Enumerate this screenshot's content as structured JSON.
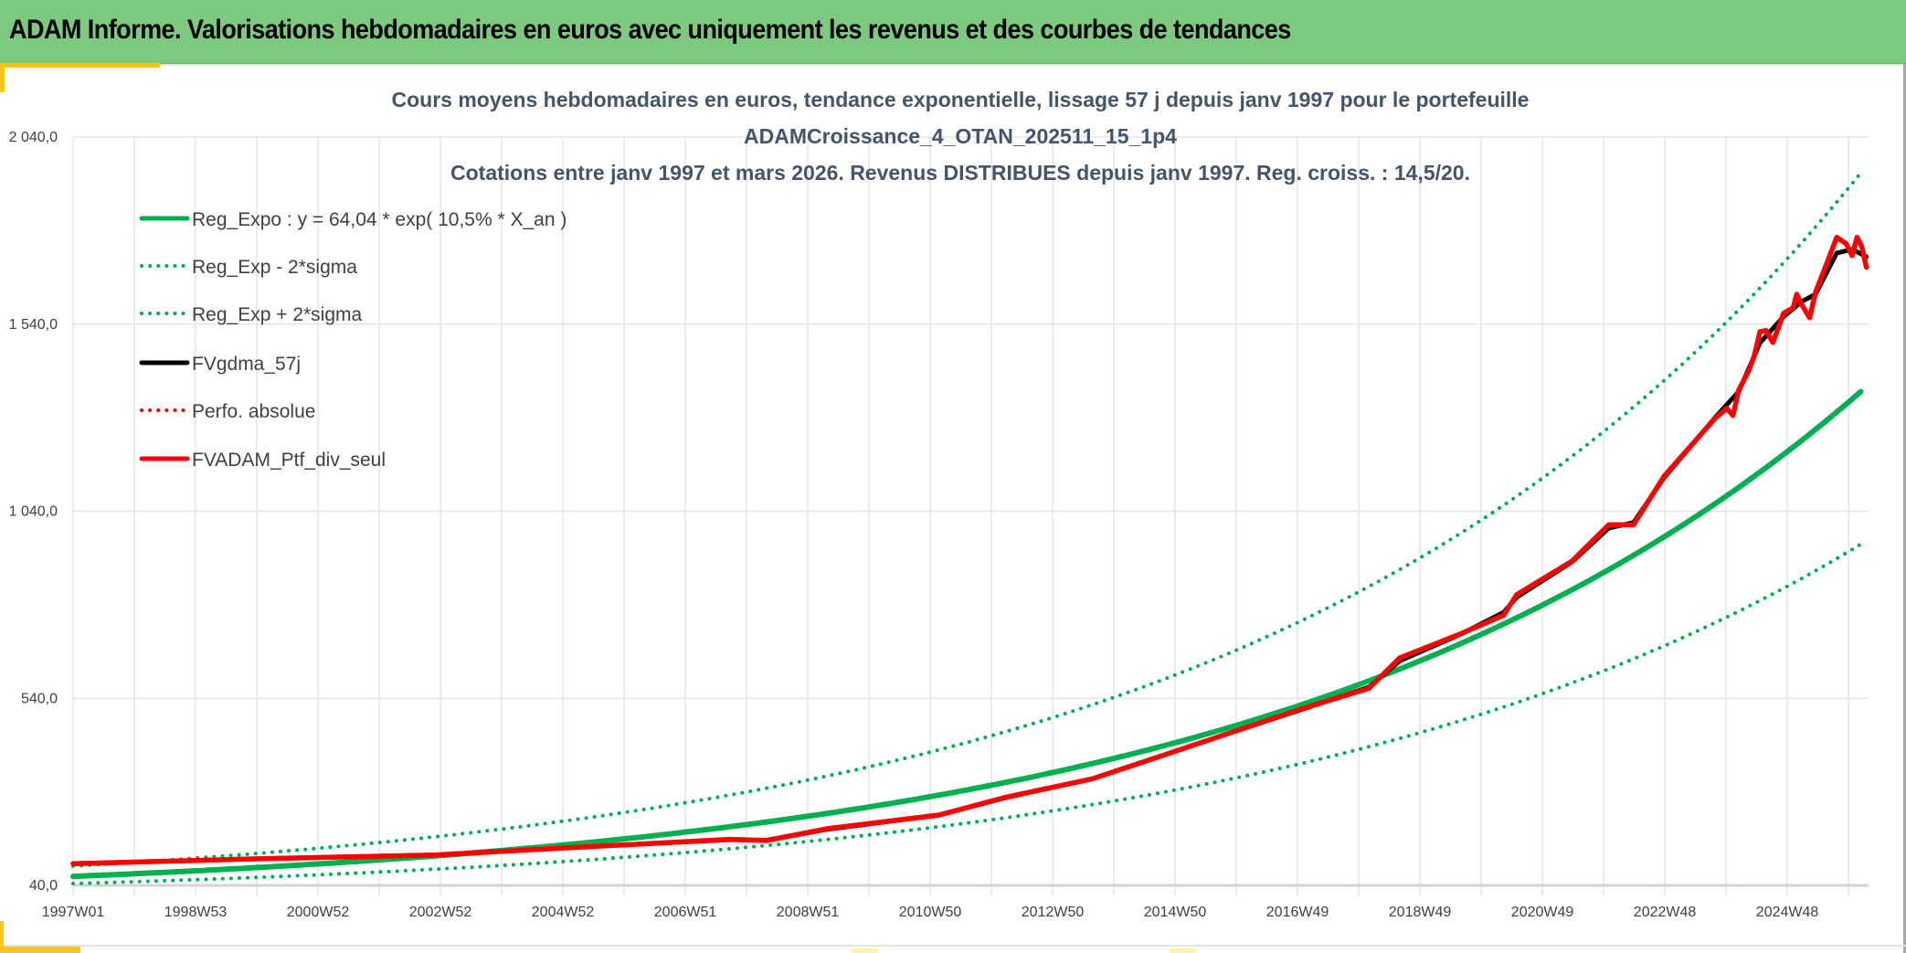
{
  "header": {
    "title": "ADAM Informe. Valorisations hebdomadaires en euros avec uniquement les revenus et des courbes de tendances"
  },
  "colors": {
    "header_bg": "#7dc97f",
    "accent_yellow": "#f5c518",
    "reg_green": "#00b050",
    "fv_black": "#000000",
    "ptf_red": "#ff0000",
    "title_text": "#44546a"
  },
  "chart_data": {
    "type": "line",
    "title": [
      "Cours moyens hebdomadaires en euros, tendance exponentielle, lissage 57 j depuis janv 1997 pour le portefeuille",
      "ADAMCroissance_4_OTAN_202511_15_1p4",
      "Cotations entre janv 1997 et mars 2026. Revenus DISTRIBUES depuis janv 1997. Reg. croiss. : 14,5/20."
    ],
    "xlabel": "",
    "ylabel": "",
    "ylim": [
      40,
      2040
    ],
    "y_ticks": [
      40,
      540,
      1040,
      1540,
      2040
    ],
    "y_tick_labels": [
      "40,0",
      "540,0",
      "1 040,0",
      "1 540,0",
      "2 040,0"
    ],
    "x_tick_labels": [
      "1997W01",
      "1998W53",
      "2000W52",
      "2002W52",
      "2004W52",
      "2006W51",
      "2008W51",
      "2010W50",
      "2012W50",
      "2014W50",
      "2016W49",
      "2018W49",
      "2020W49",
      "2022W48",
      "2024W48"
    ],
    "x_range": [
      "1997W01",
      "2026W11"
    ],
    "grid": true,
    "legend_position": "top-left",
    "regression": {
      "a": 64.04,
      "rate": 0.105,
      "upper_factor": 1.43,
      "lower_factor": 0.7
    },
    "series": [
      {
        "name": "Reg_Expo : y = 64,04 * exp( 10,5% *  X_an )",
        "style": "solid",
        "color": "#00b050",
        "kind": "reg"
      },
      {
        "name": "Reg_Exp - 2*sigma",
        "style": "dotted",
        "color": "#00b050",
        "kind": "reg_lower"
      },
      {
        "name": "Reg_Exp + 2*sigma",
        "style": "dotted",
        "color": "#00b050",
        "kind": "reg_upper"
      },
      {
        "name": "FVgdma_57j",
        "style": "solid",
        "color": "#000000",
        "kind": "points",
        "points": [
          [
            "1997W01",
            98
          ],
          [
            "2000W01",
            111
          ],
          [
            "2002W47",
            121
          ],
          [
            "2005W01",
            140
          ],
          [
            "2007W37",
            162
          ],
          [
            "2008W16",
            161
          ],
          [
            "2009W16",
            190
          ],
          [
            "2011W06",
            228
          ],
          [
            "2012W11",
            275
          ],
          [
            "2013W32",
            325
          ],
          [
            "2014W42",
            390
          ],
          [
            "2015W42",
            445
          ],
          [
            "2017W01",
            510
          ],
          [
            "2018W06",
            570
          ],
          [
            "2018W32",
            640
          ],
          [
            "2019W32",
            712
          ],
          [
            "2020W16",
            770
          ],
          [
            "2020W27",
            810
          ],
          [
            "2021W22",
            905
          ],
          [
            "2022W01",
            995
          ],
          [
            "2022W22",
            1010
          ],
          [
            "2022W48",
            1130
          ],
          [
            "2023W39",
            1290
          ],
          [
            "2024W07",
            1360
          ],
          [
            "2024W25",
            1490
          ],
          [
            "2024W45",
            1560
          ],
          [
            "2025W08",
            1600
          ],
          [
            "2025W20",
            1620
          ],
          [
            "2025W38",
            1730
          ],
          [
            "2025W51",
            1740
          ],
          [
            "2026W11",
            1720
          ]
        ]
      },
      {
        "name": "Perfo. absolue",
        "style": "dotted",
        "color": "#ff0000",
        "kind": "none"
      },
      {
        "name": "FVADAM_Ptf_div_seul",
        "style": "solid",
        "color": "#ff0000",
        "kind": "points",
        "points": [
          [
            "1997W01",
            98
          ],
          [
            "2000W01",
            111
          ],
          [
            "2002W47",
            121
          ],
          [
            "2005W01",
            140
          ],
          [
            "2007W37",
            163
          ],
          [
            "2008W16",
            160
          ],
          [
            "2009W16",
            192
          ],
          [
            "2011W06",
            228
          ],
          [
            "2012W11",
            276
          ],
          [
            "2013W32",
            325
          ],
          [
            "2014W42",
            390
          ],
          [
            "2015W42",
            445
          ],
          [
            "2017W01",
            512
          ],
          [
            "2018W06",
            567
          ],
          [
            "2018W32",
            648
          ],
          [
            "2019W32",
            713
          ],
          [
            "2020W16",
            762
          ],
          [
            "2020W27",
            817
          ],
          [
            "2021W22",
            907
          ],
          [
            "2022W01",
            1004
          ],
          [
            "2022W22",
            1004
          ],
          [
            "2022W48",
            1134
          ],
          [
            "2023W39",
            1288
          ],
          [
            "2023W49",
            1315
          ],
          [
            "2024W02",
            1296
          ],
          [
            "2024W07",
            1364
          ],
          [
            "2024W15",
            1413
          ],
          [
            "2024W20",
            1454
          ],
          [
            "2024W25",
            1520
          ],
          [
            "2024W30",
            1523
          ],
          [
            "2024W36",
            1491
          ],
          [
            "2024W45",
            1569
          ],
          [
            "2025W01",
            1584
          ],
          [
            "2025W04",
            1620
          ],
          [
            "2025W08",
            1593
          ],
          [
            "2025W15",
            1557
          ],
          [
            "2025W20",
            1625
          ],
          [
            "2025W30",
            1706
          ],
          [
            "2025W38",
            1772
          ],
          [
            "2025W46",
            1755
          ],
          [
            "2025W51",
            1723
          ],
          [
            "2026W03",
            1772
          ],
          [
            "2026W07",
            1748
          ],
          [
            "2026W11",
            1692
          ]
        ]
      }
    ]
  }
}
